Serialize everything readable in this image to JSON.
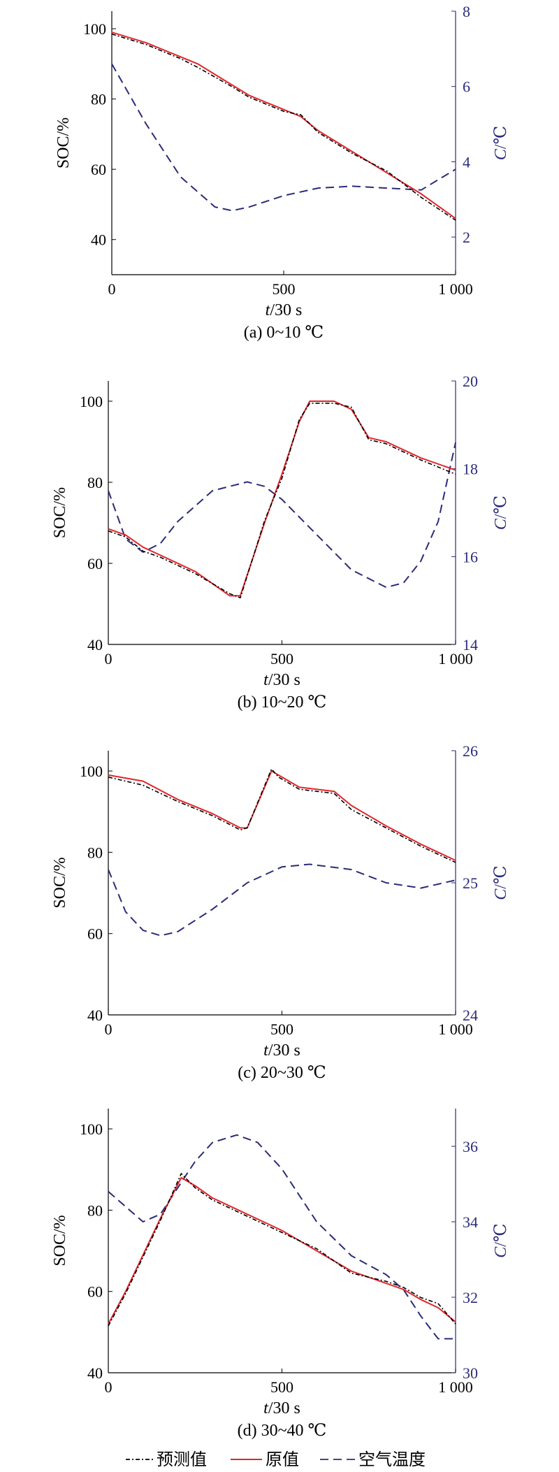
{
  "colors": {
    "soc_axis": "#000000",
    "temp_axis": "#2b2b7a",
    "predicted": "#000000",
    "original": "#e0262b",
    "air_temp": "#2b2b7a"
  },
  "legend": {
    "items": [
      {
        "label": "预测值",
        "style": "dashdot",
        "color": "#000000"
      },
      {
        "label": "原值",
        "style": "solid",
        "color": "#e0262b"
      },
      {
        "label": "空气温度",
        "style": "dashed",
        "color": "#2b2b7a"
      }
    ]
  },
  "chart_data": [
    {
      "type": "line",
      "title": "(a) 0~10 ℃",
      "xlabel_italic": "t",
      "xlabel_rest": "/30 s",
      "ylabel_left": "SOC/%",
      "ylabel_right_italic": "C",
      "ylabel_right_rest": "/℃",
      "xlim": [
        0,
        1000
      ],
      "xticks": [
        0,
        500,
        1000
      ],
      "xtick_labels": [
        "0",
        "500",
        "1 000"
      ],
      "ylim_left": [
        30,
        105
      ],
      "yticks_left": [
        40,
        60,
        80,
        100
      ],
      "ylim_right": [
        1,
        8
      ],
      "yticks_right": [
        2,
        4,
        6,
        8
      ],
      "series": [
        {
          "name": "原值",
          "axis": "left",
          "x": [
            0,
            100,
            200,
            250,
            350,
            400,
            500,
            550,
            600,
            700,
            800,
            900,
            1000
          ],
          "y": [
            99,
            96,
            92,
            90,
            84,
            81,
            77,
            75,
            71,
            65,
            59,
            53,
            46
          ]
        },
        {
          "name": "预测值",
          "axis": "left",
          "x": [
            0,
            100,
            200,
            250,
            350,
            400,
            500,
            550,
            600,
            700,
            800,
            900,
            1000
          ],
          "y": [
            98.5,
            95.5,
            91.5,
            89,
            83.5,
            80.5,
            76.5,
            75.5,
            70.5,
            64.5,
            59.5,
            52,
            45.5
          ]
        },
        {
          "name": "空气温度",
          "axis": "right",
          "x": [
            0,
            100,
            200,
            300,
            350,
            400,
            500,
            600,
            700,
            800,
            900,
            1000
          ],
          "y": [
            6.6,
            5.0,
            3.6,
            2.8,
            2.7,
            2.8,
            3.1,
            3.3,
            3.35,
            3.3,
            3.25,
            3.8
          ]
        }
      ]
    },
    {
      "type": "line",
      "title": "(b) 10~20 ℃",
      "xlabel_italic": "t",
      "xlabel_rest": "/30 s",
      "ylabel_left": "SOC/%",
      "ylabel_right_italic": "C",
      "ylabel_right_rest": "/℃",
      "xlim": [
        0,
        1000
      ],
      "xticks": [
        0,
        500,
        1000
      ],
      "xtick_labels": [
        "0",
        "500",
        "1 000"
      ],
      "ylim_left": [
        40,
        105
      ],
      "yticks_left": [
        40,
        60,
        80,
        100
      ],
      "ylim_right": [
        14,
        20
      ],
      "yticks_right": [
        14,
        16,
        18,
        20
      ],
      "series": [
        {
          "name": "原值",
          "axis": "left",
          "x": [
            0,
            50,
            100,
            150,
            250,
            350,
            380,
            450,
            500,
            550,
            580,
            650,
            700,
            750,
            800,
            900,
            1000
          ],
          "y": [
            68.5,
            67,
            64,
            62,
            58,
            52,
            52,
            70,
            82,
            95,
            100,
            100,
            98,
            91,
            90,
            86,
            83
          ]
        },
        {
          "name": "预测值",
          "axis": "left",
          "x": [
            0,
            50,
            100,
            150,
            250,
            350,
            380,
            450,
            500,
            550,
            580,
            650,
            700,
            750,
            800,
            900,
            1000
          ],
          "y": [
            68,
            66.5,
            63,
            61.5,
            57.5,
            52.5,
            51.5,
            70.5,
            81,
            95.5,
            99.5,
            99.5,
            98.5,
            90.5,
            89.5,
            85.5,
            82
          ]
        },
        {
          "name": "空气温度",
          "axis": "right",
          "x": [
            0,
            50,
            100,
            150,
            200,
            300,
            400,
            450,
            500,
            600,
            700,
            800,
            850,
            900,
            950,
            1000
          ],
          "y": [
            17.5,
            16.4,
            16.1,
            16.3,
            16.8,
            17.5,
            17.7,
            17.6,
            17.3,
            16.5,
            15.7,
            15.3,
            15.4,
            15.9,
            16.8,
            18.6
          ]
        }
      ]
    },
    {
      "type": "line",
      "title": "(c) 20~30 ℃",
      "xlabel_italic": "t",
      "xlabel_rest": "/30 s",
      "ylabel_left": "SOC/%",
      "ylabel_right_italic": "C",
      "ylabel_right_rest": "/℃",
      "xlim": [
        0,
        1000
      ],
      "xticks": [
        0,
        500,
        1000
      ],
      "xtick_labels": [
        "0",
        "500",
        "1 000"
      ],
      "ylim_left": [
        40,
        105
      ],
      "yticks_left": [
        40,
        60,
        80,
        100
      ],
      "ylim_right": [
        24,
        26
      ],
      "yticks_right": [
        24,
        25,
        26
      ],
      "series": [
        {
          "name": "原值",
          "axis": "left",
          "x": [
            0,
            100,
            200,
            300,
            380,
            400,
            470,
            490,
            550,
            600,
            650,
            700,
            800,
            900,
            1000
          ],
          "y": [
            99,
            97.5,
            93,
            89.5,
            86,
            86,
            100,
            99,
            96,
            95.5,
            95,
            91.5,
            86.5,
            82,
            78
          ]
        },
        {
          "name": "预测值",
          "axis": "left",
          "x": [
            0,
            100,
            200,
            300,
            380,
            400,
            470,
            490,
            550,
            600,
            650,
            700,
            800,
            900,
            1000
          ],
          "y": [
            98.5,
            96.5,
            92.5,
            89,
            85.5,
            86,
            100.5,
            98.5,
            95.5,
            95,
            94.5,
            90.5,
            86,
            81.5,
            77.5
          ]
        },
        {
          "name": "空气温度",
          "axis": "right",
          "x": [
            0,
            50,
            100,
            150,
            200,
            300,
            400,
            500,
            580,
            700,
            800,
            900,
            1000
          ],
          "y": [
            25.1,
            24.78,
            24.64,
            24.6,
            24.63,
            24.8,
            25.0,
            25.12,
            25.14,
            25.1,
            25.0,
            24.96,
            25.02
          ]
        }
      ]
    },
    {
      "type": "line",
      "title": "(d) 30~40 ℃",
      "xlabel_italic": "t",
      "xlabel_rest": "/30 s",
      "ylabel_left": "SOC/%",
      "ylabel_right_italic": "C",
      "ylabel_right_rest": "/℃",
      "xlim": [
        0,
        1000
      ],
      "xticks": [
        0,
        500,
        1000
      ],
      "xtick_labels": [
        "0",
        "500",
        "1 000"
      ],
      "ylim_left": [
        40,
        105
      ],
      "yticks_left": [
        40,
        60,
        80,
        100
      ],
      "ylim_right": [
        30,
        37
      ],
      "yticks_right": [
        30,
        32,
        34,
        36
      ],
      "series": [
        {
          "name": "原值",
          "axis": "left",
          "x": [
            0,
            50,
            100,
            150,
            210,
            250,
            300,
            400,
            500,
            600,
            700,
            800,
            850,
            900,
            950,
            1000
          ],
          "y": [
            52,
            60,
            69,
            78,
            88,
            86,
            83,
            79,
            75,
            70,
            65,
            62,
            60.5,
            58,
            56,
            52.5
          ]
        },
        {
          "name": "预测值",
          "axis": "left",
          "x": [
            0,
            50,
            100,
            150,
            210,
            250,
            300,
            400,
            500,
            600,
            700,
            800,
            850,
            900,
            950,
            1000
          ],
          "y": [
            51.5,
            59.5,
            68.5,
            77.5,
            89,
            85.5,
            82.5,
            78.5,
            74.5,
            70.5,
            64.5,
            62.5,
            61,
            58.5,
            57,
            52
          ]
        },
        {
          "name": "空气温度",
          "axis": "right",
          "x": [
            0,
            50,
            100,
            150,
            200,
            250,
            300,
            370,
            430,
            500,
            600,
            700,
            800,
            850,
            900,
            950,
            1000
          ],
          "y": [
            34.8,
            34.4,
            34.0,
            34.2,
            34.9,
            35.6,
            36.1,
            36.3,
            36.1,
            35.4,
            34.0,
            33.1,
            32.6,
            32.2,
            31.5,
            30.9,
            30.9
          ]
        }
      ]
    }
  ]
}
